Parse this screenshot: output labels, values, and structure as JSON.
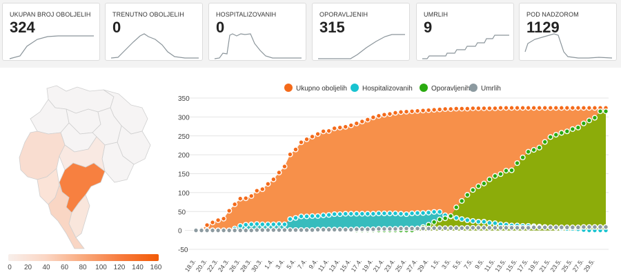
{
  "cards": [
    {
      "label": "UKUPAN BROJ OBOLJELIH",
      "value": "324"
    },
    {
      "label": "TRENUTNO OBOLJELIH",
      "value": "0"
    },
    {
      "label": "HOSPITALIZOVANIH",
      "value": "0"
    },
    {
      "label": "OPORAVLJENIH",
      "value": "315"
    },
    {
      "label": "UMRLIH",
      "value": "9"
    },
    {
      "label": "POD NADZOROM",
      "value": "1129"
    }
  ],
  "map_legend": {
    "ticks": [
      "0",
      "20",
      "40",
      "60",
      "80",
      "100",
      "120",
      "140",
      "160"
    ],
    "colors": [
      "#f8efeb",
      "#f25a06"
    ]
  },
  "chart_data": {
    "type": "area",
    "title": "",
    "xlabel": "",
    "ylabel": "",
    "ylim": [
      -50,
      350
    ],
    "yticks": [
      -50,
      0,
      50,
      100,
      150,
      200,
      250,
      300,
      350
    ],
    "legend_position": "top",
    "x_tick_labels": [
      "18.3.",
      "20.3.",
      "22.3.",
      "24.3.",
      "26.3.",
      "28.3.",
      "30.3.",
      "1.4.",
      "3.4.",
      "5.4.",
      "7.4.",
      "9.4.",
      "11.4.",
      "13.4.",
      "15.4.",
      "17.4.",
      "19.4.",
      "21.4.",
      "23.4.",
      "25.4.",
      "27.4.",
      "29.4.",
      "1.5.",
      "3.5.",
      "5.5.",
      "7.5.",
      "9.5.",
      "11.5.",
      "13.5.",
      "15.5.",
      "17.5.",
      "19.5.",
      "21.5.",
      "23.5.",
      "25.5.",
      "27.5.",
      "29.5."
    ],
    "series": [
      {
        "name": "Ukupno oboljelih",
        "color": "#f46a1a",
        "fill": "#f7904a",
        "values": [
          2,
          3,
          14,
          21,
          27,
          31,
          52,
          69,
          84,
          85,
          91,
          105,
          109,
          123,
          135,
          153,
          169,
          201,
          214,
          233,
          241,
          248,
          255,
          262,
          263,
          270,
          272,
          274,
          278,
          283,
          288,
          293,
          299,
          303,
          306,
          308,
          311,
          313,
          314,
          315,
          316,
          317,
          318,
          319,
          320,
          321,
          321,
          322,
          322,
          322,
          323,
          323,
          323,
          323,
          323,
          324,
          324,
          324,
          324,
          324,
          324,
          324,
          324,
          324,
          324,
          324,
          324,
          324,
          324,
          324,
          324,
          324,
          324,
          324,
          324
        ]
      },
      {
        "name": "Hospitalizovanih",
        "color": "#18c3d0",
        "fill": "#2cbfc3",
        "values": [
          0,
          0,
          0,
          0,
          0,
          0,
          0,
          5,
          12,
          15,
          16,
          17,
          16,
          16,
          16,
          17,
          16,
          30,
          33,
          37,
          37,
          38,
          38,
          40,
          41,
          43,
          43,
          44,
          44,
          44,
          44,
          44,
          44,
          45,
          45,
          45,
          45,
          44,
          43,
          45,
          46,
          46,
          47,
          49,
          49,
          40,
          37,
          33,
          30,
          27,
          25,
          23,
          23,
          20,
          19,
          16,
          15,
          13,
          13,
          12,
          12,
          11,
          10,
          9,
          8,
          7,
          5,
          4,
          4,
          3,
          1,
          0,
          0,
          0,
          0
        ]
      },
      {
        "name": "Oporavljenih",
        "color": "#2aaa10",
        "fill": "#8cac0a",
        "values": [
          0,
          0,
          0,
          0,
          0,
          0,
          0,
          0,
          0,
          0,
          0,
          0,
          0,
          0,
          0,
          0,
          0,
          0,
          0,
          0,
          0,
          0,
          0,
          0,
          0,
          0,
          0,
          0,
          0,
          0,
          0,
          0,
          0,
          0,
          0,
          0,
          0,
          0,
          0,
          0,
          5,
          9,
          15,
          22,
          29,
          32,
          38,
          61,
          78,
          94,
          107,
          117,
          124,
          135,
          144,
          149,
          158,
          159,
          178,
          193,
          208,
          213,
          219,
          234,
          247,
          253,
          258,
          262,
          268,
          272,
          283,
          291,
          298,
          315,
          315
        ]
      },
      {
        "name": "Umrlih",
        "color": "#8c9aa0",
        "fill": "#8c9aa0",
        "values": [
          0,
          0,
          0,
          0,
          0,
          0,
          0,
          0,
          0,
          0,
          0,
          1,
          1,
          1,
          1,
          1,
          1,
          1,
          1,
          1,
          1,
          1,
          2,
          2,
          2,
          2,
          2,
          2,
          2,
          3,
          3,
          3,
          3,
          4,
          4,
          4,
          4,
          5,
          5,
          5,
          5,
          5,
          5,
          6,
          6,
          6,
          6,
          6,
          6,
          7,
          7,
          7,
          7,
          7,
          7,
          7,
          7,
          7,
          7,
          7,
          7,
          8,
          8,
          8,
          8,
          8,
          8,
          8,
          8,
          8,
          9,
          9,
          9,
          9,
          9
        ]
      }
    ]
  }
}
